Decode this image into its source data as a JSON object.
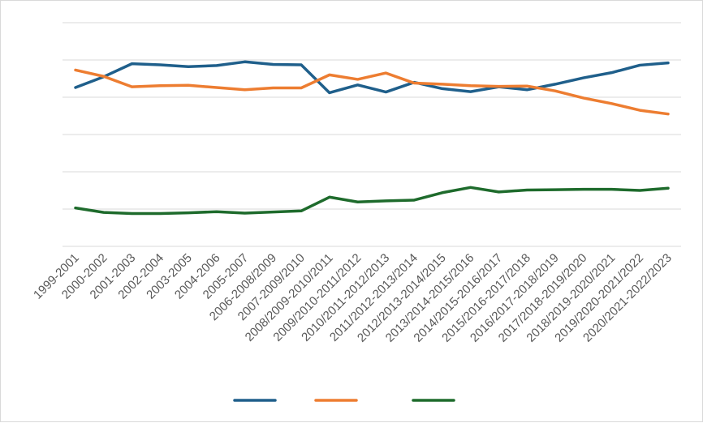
{
  "chart_data": {
    "type": "line",
    "title": "",
    "xlabel": "",
    "ylabel": "",
    "ylim": [
      0,
      6
    ],
    "grid": true,
    "legend_position": "bottom",
    "categories": [
      "1999-2001",
      "2000-2002",
      "2001-2003",
      "2002-2004",
      "2003-2005",
      "2004-2006",
      "2005-2007",
      "2006-2008/2009",
      "2007-2009/2010",
      "2008/2009-2010/2011",
      "2009/2010-2011/2012",
      "2010/2011-2012/2013",
      "2011/2012-2013/2014",
      "2012/2013-2014/2015",
      "2013/2014-2015/2016",
      "2014/2015-2016/2017",
      "2015/2016-2017/2018",
      "2016/2017-2018/2019",
      "2017/2018-2019/2020",
      "2018/2019-2020/2021",
      "2019/2020-2021/2022",
      "2020/2021-2022/2023"
    ],
    "series": [
      {
        "color": "#1f5f8b",
        "values": [
          4.26,
          4.55,
          4.9,
          4.87,
          4.82,
          4.85,
          4.95,
          4.88,
          4.87,
          4.12,
          4.33,
          4.14,
          4.4,
          4.23,
          4.15,
          4.28,
          4.2,
          4.35,
          4.52,
          4.66,
          4.86,
          4.92
        ]
      },
      {
        "color": "#ed7d31",
        "values": [
          4.73,
          4.56,
          4.28,
          4.31,
          4.32,
          4.26,
          4.2,
          4.25,
          4.25,
          4.6,
          4.48,
          4.65,
          4.38,
          4.35,
          4.31,
          4.29,
          4.3,
          4.17,
          3.98,
          3.83,
          3.65,
          3.55
        ]
      },
      {
        "color": "#1e6b2c",
        "values": [
          1.03,
          0.91,
          0.88,
          0.88,
          0.9,
          0.93,
          0.89,
          0.92,
          0.95,
          1.32,
          1.19,
          1.22,
          1.24,
          1.44,
          1.58,
          1.46,
          1.51,
          1.52,
          1.53,
          1.53,
          1.5,
          1.56
        ]
      }
    ]
  }
}
